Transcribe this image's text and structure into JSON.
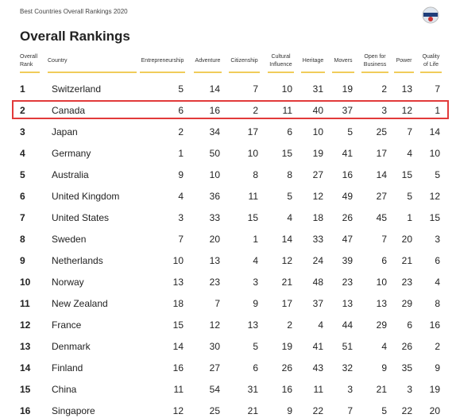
{
  "header": {
    "subtitle": "Best Countries Overall Rankings 2020",
    "title": "Overall Rankings"
  },
  "table": {
    "columns": [
      "Overall Rank",
      "Country",
      "Entrepreneurship",
      "Adventure",
      "Citizenship",
      "Cultural Influence",
      "Heritage",
      "Movers",
      "Open for Business",
      "Power",
      "Quality of Life"
    ],
    "rows": [
      [
        1,
        "Switzerland",
        5,
        14,
        7,
        10,
        31,
        19,
        2,
        13,
        7
      ],
      [
        2,
        "Canada",
        6,
        16,
        2,
        11,
        40,
        37,
        3,
        12,
        1
      ],
      [
        3,
        "Japan",
        2,
        34,
        17,
        6,
        10,
        5,
        25,
        7,
        14
      ],
      [
        4,
        "Germany",
        1,
        50,
        10,
        15,
        19,
        41,
        17,
        4,
        10
      ],
      [
        5,
        "Australia",
        9,
        10,
        8,
        8,
        27,
        16,
        14,
        15,
        5
      ],
      [
        6,
        "United Kingdom",
        4,
        36,
        11,
        5,
        12,
        49,
        27,
        5,
        12
      ],
      [
        7,
        "United States",
        3,
        33,
        15,
        4,
        18,
        26,
        45,
        1,
        15
      ],
      [
        8,
        "Sweden",
        7,
        20,
        1,
        14,
        33,
        47,
        7,
        20,
        3
      ],
      [
        9,
        "Netherlands",
        10,
        13,
        4,
        12,
        24,
        39,
        6,
        21,
        6
      ],
      [
        10,
        "Norway",
        13,
        23,
        3,
        21,
        48,
        23,
        10,
        23,
        4
      ],
      [
        11,
        "New Zealand",
        18,
        7,
        9,
        17,
        37,
        13,
        13,
        29,
        8
      ],
      [
        12,
        "France",
        15,
        12,
        13,
        2,
        4,
        44,
        29,
        6,
        16
      ],
      [
        13,
        "Denmark",
        14,
        30,
        5,
        19,
        41,
        51,
        4,
        26,
        2
      ],
      [
        14,
        "Finland",
        16,
        27,
        6,
        26,
        43,
        32,
        9,
        35,
        9
      ],
      [
        15,
        "China",
        11,
        54,
        31,
        16,
        11,
        3,
        21,
        3,
        19
      ],
      [
        16,
        "Singapore",
        12,
        25,
        21,
        9,
        22,
        7,
        5,
        22,
        20
      ]
    ]
  }
}
